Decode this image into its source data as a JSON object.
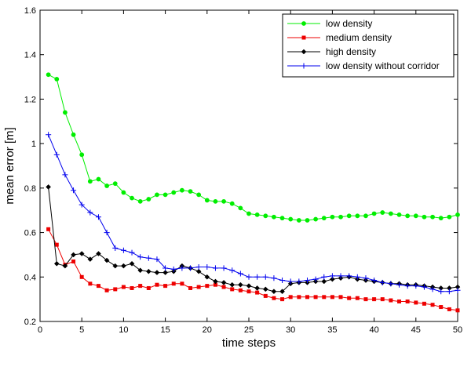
{
  "chart_data": {
    "type": "line",
    "xlabel": "time steps",
    "ylabel": "mean error [m]",
    "xlim": [
      0,
      50
    ],
    "ylim": [
      0.2,
      1.6
    ],
    "xticks": [
      "0",
      "5",
      "10",
      "15",
      "20",
      "25",
      "30",
      "35",
      "40",
      "45",
      "50"
    ],
    "yticks": [
      "0.2",
      "0.4",
      "0.6",
      "0.8",
      "1",
      "1.2",
      "1.4",
      "1.6"
    ],
    "grid": false,
    "legend_position": "top-right",
    "x": [
      1,
      2,
      3,
      4,
      5,
      6,
      7,
      8,
      9,
      10,
      11,
      12,
      13,
      14,
      15,
      16,
      17,
      18,
      19,
      20,
      21,
      22,
      23,
      24,
      25,
      26,
      27,
      28,
      29,
      30,
      31,
      32,
      33,
      34,
      35,
      36,
      37,
      38,
      39,
      40,
      41,
      42,
      43,
      44,
      45,
      46,
      47,
      48,
      49,
      50
    ],
    "series": [
      {
        "name": "low density",
        "color": "#00ee00",
        "marker": "circle",
        "values": [
          1.31,
          1.29,
          1.14,
          1.04,
          0.95,
          0.83,
          0.84,
          0.81,
          0.82,
          0.78,
          0.755,
          0.74,
          0.75,
          0.77,
          0.77,
          0.78,
          0.79,
          0.785,
          0.77,
          0.745,
          0.74,
          0.74,
          0.73,
          0.71,
          0.685,
          0.68,
          0.675,
          0.67,
          0.665,
          0.66,
          0.655,
          0.655,
          0.66,
          0.665,
          0.67,
          0.67,
          0.675,
          0.675,
          0.675,
          0.685,
          0.69,
          0.685,
          0.68,
          0.675,
          0.675,
          0.67,
          0.67,
          0.665,
          0.67,
          0.68
        ]
      },
      {
        "name": "medium density",
        "color": "#ee0000",
        "marker": "square",
        "values": [
          0.615,
          0.545,
          0.455,
          0.47,
          0.4,
          0.37,
          0.36,
          0.34,
          0.345,
          0.355,
          0.35,
          0.36,
          0.35,
          0.365,
          0.36,
          0.37,
          0.37,
          0.35,
          0.355,
          0.36,
          0.365,
          0.355,
          0.345,
          0.34,
          0.335,
          0.33,
          0.315,
          0.305,
          0.3,
          0.31,
          0.31,
          0.31,
          0.31,
          0.31,
          0.31,
          0.31,
          0.305,
          0.305,
          0.3,
          0.3,
          0.3,
          0.295,
          0.29,
          0.29,
          0.285,
          0.28,
          0.275,
          0.265,
          0.255,
          0.25
        ]
      },
      {
        "name": "high density",
        "color": "#000000",
        "marker": "diamond",
        "values": [
          0.805,
          0.46,
          0.45,
          0.5,
          0.505,
          0.48,
          0.505,
          0.475,
          0.45,
          0.45,
          0.46,
          0.43,
          0.425,
          0.42,
          0.42,
          0.425,
          0.45,
          0.44,
          0.425,
          0.4,
          0.38,
          0.375,
          0.365,
          0.365,
          0.36,
          0.35,
          0.345,
          0.335,
          0.335,
          0.37,
          0.375,
          0.375,
          0.38,
          0.38,
          0.39,
          0.395,
          0.4,
          0.39,
          0.385,
          0.38,
          0.375,
          0.37,
          0.37,
          0.365,
          0.365,
          0.36,
          0.355,
          0.35,
          0.35,
          0.355
        ]
      },
      {
        "name": "low density without corridor",
        "color": "#0000ee",
        "marker": "plus",
        "values": [
          1.04,
          0.95,
          0.86,
          0.79,
          0.725,
          0.69,
          0.67,
          0.6,
          0.53,
          0.52,
          0.51,
          0.49,
          0.485,
          0.48,
          0.44,
          0.435,
          0.44,
          0.44,
          0.445,
          0.445,
          0.44,
          0.44,
          0.43,
          0.415,
          0.4,
          0.4,
          0.4,
          0.395,
          0.385,
          0.38,
          0.38,
          0.385,
          0.39,
          0.4,
          0.405,
          0.405,
          0.405,
          0.4,
          0.395,
          0.385,
          0.375,
          0.37,
          0.365,
          0.36,
          0.36,
          0.355,
          0.345,
          0.335,
          0.335,
          0.34
        ]
      }
    ]
  }
}
